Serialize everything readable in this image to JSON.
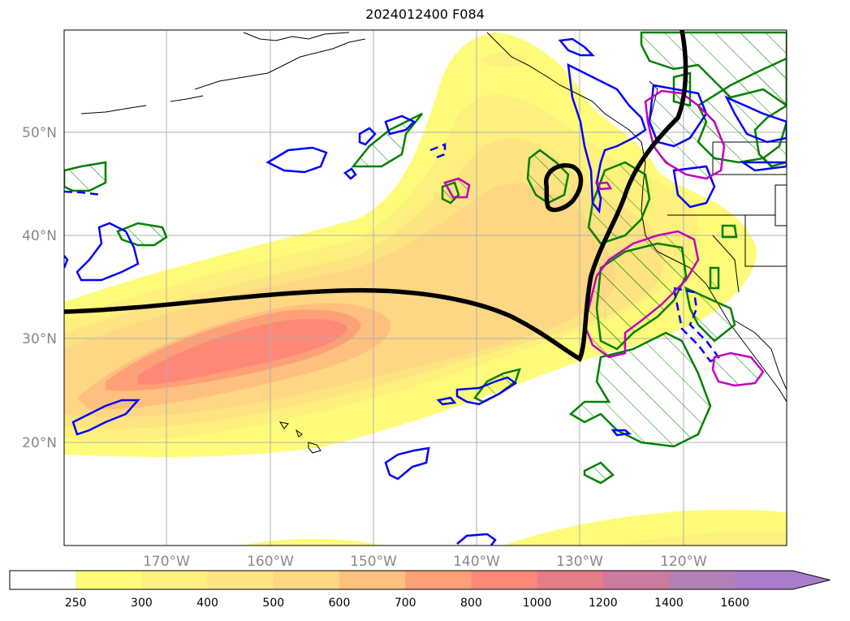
{
  "title": "2024012400 F084",
  "lat_labels": [
    "50°N",
    "40°N",
    "30°N",
    "20°N"
  ],
  "lon_labels": [
    "170°W",
    "160°W",
    "150°W",
    "140°W",
    "130°W",
    "120°W"
  ],
  "colorbar": {
    "levels": [
      "250",
      "300",
      "400",
      "500",
      "600",
      "700",
      "800",
      "1000",
      "1200",
      "1400",
      "1600"
    ],
    "colors": [
      "#ffffff",
      "#fefb7a",
      "#fdf07c",
      "#fde382",
      "#fdd784",
      "#fdc07e",
      "#fda078",
      "#fd8878",
      "#e47d86",
      "#cc7a9e",
      "#b47eb6",
      "#a97dc9"
    ]
  },
  "colors": {
    "height_contour": "#000000",
    "precip_contour": "#008000",
    "positive_contour": "#0000ff",
    "magenta_contour": "#c000c0",
    "coastline": "#000000",
    "grid": "#b0b0b0"
  }
}
